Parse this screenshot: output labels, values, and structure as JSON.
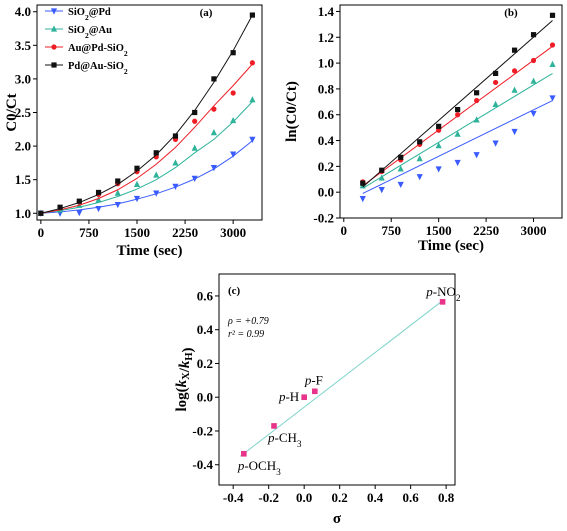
{
  "chart_data": [
    {
      "id": "a",
      "type": "scatter",
      "panel_label": "(a)",
      "xlabel": "Time (sec)",
      "ylabel": "C0/Ct",
      "xlim": [
        -60,
        3450
      ],
      "ylim": [
        0.9,
        4.1
      ],
      "xticks": [
        "0",
        "750",
        "1500",
        "2250",
        "3000"
      ],
      "yticks": [
        "1.0",
        "1.5",
        "2.0",
        "2.5",
        "3.0",
        "3.5",
        "4.0"
      ],
      "legend_position": "top-left",
      "x": [
        0,
        300,
        600,
        900,
        1200,
        1500,
        1800,
        2100,
        2400,
        2700,
        3000,
        3300
      ],
      "series": [
        {
          "name": "SiO2@Pd",
          "marker": "triangle-down",
          "color": "#3a5bff",
          "values": [
            1.0,
            1.0,
            1.01,
            1.07,
            1.13,
            1.22,
            1.3,
            1.4,
            1.52,
            1.68,
            1.88,
            2.1
          ],
          "fit": [
            1.0,
            1.02,
            1.05,
            1.09,
            1.14,
            1.21,
            1.29,
            1.39,
            1.51,
            1.66,
            1.85,
            2.08
          ]
        },
        {
          "name": "SiO2@Au",
          "marker": "triangle-up",
          "color": "#2fb39b",
          "values": [
            1.0,
            1.05,
            1.12,
            1.2,
            1.3,
            1.43,
            1.57,
            1.75,
            1.97,
            2.2,
            2.38,
            2.69
          ],
          "fit": [
            1.0,
            1.04,
            1.09,
            1.16,
            1.25,
            1.36,
            1.5,
            1.68,
            1.9,
            2.1,
            2.36,
            2.66
          ]
        },
        {
          "name": "Au@Pd-SiO2",
          "marker": "circle",
          "color": "#ee1c25",
          "values": [
            1.0,
            1.08,
            1.17,
            1.28,
            1.44,
            1.62,
            1.84,
            2.1,
            2.37,
            2.55,
            2.79,
            3.24
          ],
          "fit": [
            1.0,
            1.05,
            1.12,
            1.22,
            1.35,
            1.52,
            1.73,
            1.98,
            2.28,
            2.6,
            2.9,
            3.22
          ]
        },
        {
          "name": "Pd@Au-SiO2",
          "marker": "square",
          "color": "#111111",
          "values": [
            1.0,
            1.09,
            1.18,
            1.31,
            1.48,
            1.67,
            1.9,
            2.15,
            2.5,
            3.0,
            3.39,
            3.95
          ],
          "fit": [
            1.0,
            1.07,
            1.16,
            1.28,
            1.43,
            1.63,
            1.87,
            2.17,
            2.53,
            2.95,
            3.42,
            3.95
          ]
        }
      ]
    },
    {
      "id": "b",
      "type": "scatter",
      "panel_label": "(b)",
      "xlabel": "Time (sec)",
      "ylabel": "ln(C0/Ct)",
      "xlim": [
        -60,
        3450
      ],
      "ylim": [
        -0.2,
        1.45
      ],
      "xticks": [
        "0",
        "750",
        "1500",
        "2250",
        "3000"
      ],
      "yticks": [
        "-0.2",
        "0.0",
        "0.2",
        "0.4",
        "0.6",
        "0.8",
        "1.0",
        "1.2",
        "1.4"
      ],
      "x": [
        300,
        600,
        900,
        1200,
        1500,
        1800,
        2100,
        2400,
        2700,
        3000,
        3300
      ],
      "series": [
        {
          "marker": "triangle-down",
          "color": "#3a5bff",
          "values": [
            -0.05,
            0.02,
            0.06,
            0.12,
            0.18,
            0.23,
            0.29,
            0.38,
            0.47,
            0.61,
            0.73
          ],
          "fit": [
            [
              300,
              -0.01
            ],
            [
              3300,
              0.71
            ]
          ]
        },
        {
          "marker": "triangle-up",
          "color": "#2fb39b",
          "values": [
            0.05,
            0.11,
            0.18,
            0.26,
            0.36,
            0.45,
            0.56,
            0.68,
            0.79,
            0.86,
            0.99
          ],
          "fit": [
            [
              300,
              0.03
            ],
            [
              3300,
              0.92
            ]
          ]
        },
        {
          "marker": "circle",
          "color": "#ee1c25",
          "values": [
            0.08,
            0.16,
            0.25,
            0.37,
            0.48,
            0.6,
            0.71,
            0.85,
            0.94,
            1.02,
            1.14
          ],
          "fit": [
            [
              300,
              0.05
            ],
            [
              3300,
              1.13
            ]
          ]
        },
        {
          "marker": "square",
          "color": "#111111",
          "values": [
            0.07,
            0.17,
            0.27,
            0.39,
            0.51,
            0.64,
            0.77,
            0.92,
            1.1,
            1.22,
            1.37
          ],
          "fit": [
            [
              300,
              0.04
            ],
            [
              3300,
              1.33
            ]
          ]
        }
      ]
    },
    {
      "id": "c",
      "type": "scatter",
      "panel_label": "(c)",
      "xlabel": "σ",
      "ylabel": "log(kX/kH)",
      "xlim": [
        -0.48,
        0.85
      ],
      "ylim": [
        -0.52,
        0.73
      ],
      "xticks": [
        "-0.4",
        "-0.2",
        "0.0",
        "0.2",
        "0.4",
        "0.6",
        "0.8"
      ],
      "yticks": [
        "-0.4",
        "-0.2",
        "0.0",
        "0.2",
        "0.4",
        "0.6"
      ],
      "annotation": {
        "rho": "ρ =  +0.79",
        "r2": "r² = 0.99"
      },
      "color": "#e8338b",
      "fit_color": "#7fd4cc",
      "fit": [
        [
          -0.36,
          -0.35
        ],
        [
          0.79,
          0.58
        ]
      ],
      "points": [
        {
          "label": "p-OCH3",
          "prefix": "p-",
          "base": "OCH",
          "sub": "3",
          "x": -0.34,
          "y": -0.335
        },
        {
          "label": "p-CH3",
          "prefix": "p-",
          "base": "CH",
          "sub": "3",
          "x": -0.17,
          "y": -0.17
        },
        {
          "label": "p-H",
          "prefix": "p-",
          "base": "H",
          "sub": "",
          "x": 0.0,
          "y": 0.0
        },
        {
          "label": "p-F",
          "prefix": "p-",
          "base": "F",
          "sub": "",
          "x": 0.06,
          "y": 0.035
        },
        {
          "label": "p-NO2",
          "prefix": "p-",
          "base": "NO",
          "sub": "2",
          "x": 0.78,
          "y": 0.565
        }
      ]
    }
  ]
}
